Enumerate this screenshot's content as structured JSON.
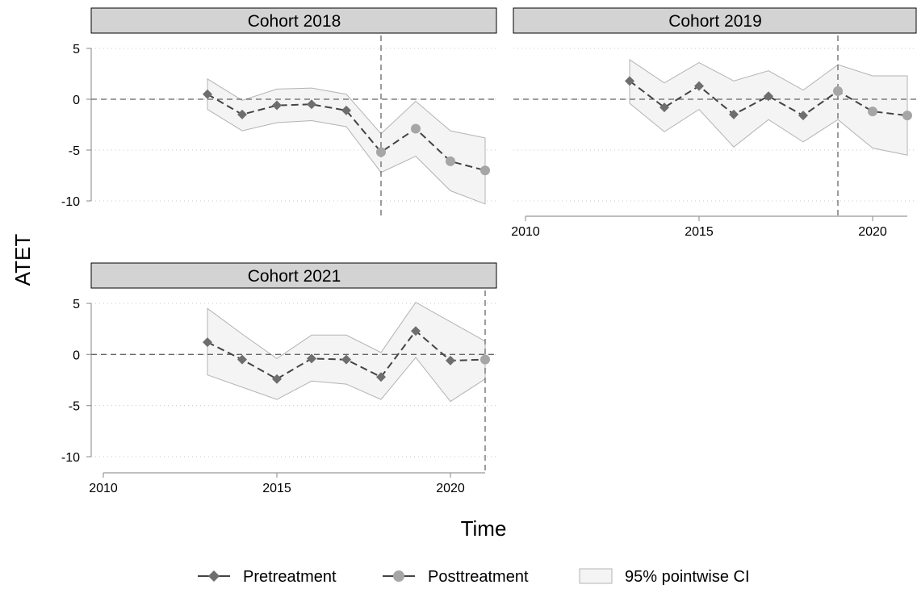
{
  "chart_data": [
    {
      "type": "line",
      "title": "Cohort 2018",
      "treatment_year": 2018,
      "x_ticks": [
        2010,
        2015,
        2020
      ],
      "y_ticks": [
        5,
        0,
        -5,
        -10
      ],
      "xlim": [
        2010,
        2021
      ],
      "ylim": [
        -10,
        5
      ],
      "series": [
        {
          "name": "Pretreatment",
          "x": [
            2013,
            2014,
            2015,
            2016,
            2017
          ],
          "y": [
            0.5,
            -1.5,
            -0.6,
            -0.5,
            -1.1
          ]
        },
        {
          "name": "Posttreatment",
          "x": [
            2018,
            2019,
            2020,
            2021
          ],
          "y": [
            -5.2,
            -2.9,
            -6.1,
            -7.0
          ]
        }
      ],
      "ci": {
        "x": [
          2013,
          2014,
          2015,
          2016,
          2017,
          2018,
          2019,
          2020,
          2021
        ],
        "lower": [
          -1.0,
          -3.1,
          -2.3,
          -2.1,
          -2.7,
          -7.2,
          -5.6,
          -9.0,
          -10.3
        ],
        "upper": [
          2.0,
          -0.1,
          1.0,
          1.1,
          0.5,
          -3.4,
          -0.2,
          -3.1,
          -3.8
        ]
      }
    },
    {
      "type": "line",
      "title": "Cohort 2019",
      "treatment_year": 2019,
      "x_ticks": [
        2010,
        2015,
        2020
      ],
      "y_ticks": [
        5,
        0,
        -5,
        -10
      ],
      "xlim": [
        2010,
        2021
      ],
      "ylim": [
        -10,
        5
      ],
      "series": [
        {
          "name": "Pretreatment",
          "x": [
            2013,
            2014,
            2015,
            2016,
            2017,
            2018
          ],
          "y": [
            1.8,
            -0.8,
            1.3,
            -1.5,
            0.3,
            -1.6
          ]
        },
        {
          "name": "Posttreatment",
          "x": [
            2019,
            2020,
            2021
          ],
          "y": [
            0.8,
            -1.2,
            -1.6
          ]
        }
      ],
      "ci": {
        "x": [
          2013,
          2014,
          2015,
          2016,
          2017,
          2018,
          2019,
          2020,
          2021
        ],
        "lower": [
          -0.4,
          -3.2,
          -1.0,
          -4.7,
          -2.0,
          -4.2,
          -2.0,
          -4.8,
          -5.5
        ],
        "upper": [
          3.9,
          1.6,
          3.6,
          1.8,
          2.8,
          0.9,
          3.4,
          2.3,
          2.3
        ]
      }
    },
    {
      "type": "line",
      "title": "Cohort 2021",
      "treatment_year": 2021,
      "x_ticks": [
        2010,
        2015,
        2020
      ],
      "y_ticks": [
        5,
        0,
        -5,
        -10
      ],
      "xlim": [
        2010,
        2021
      ],
      "ylim": [
        -10,
        5
      ],
      "series": [
        {
          "name": "Pretreatment",
          "x": [
            2013,
            2014,
            2015,
            2016,
            2017,
            2018,
            2019,
            2020
          ],
          "y": [
            1.2,
            -0.5,
            -2.4,
            -0.4,
            -0.5,
            -2.2,
            2.3,
            -0.6
          ]
        },
        {
          "name": "Posttreatment",
          "x": [
            2021
          ],
          "y": [
            -0.5
          ]
        }
      ],
      "ci": {
        "x": [
          2013,
          2014,
          2015,
          2016,
          2017,
          2018,
          2019,
          2020,
          2021
        ],
        "lower": [
          -2.0,
          -3.2,
          -4.4,
          -2.6,
          -2.9,
          -4.4,
          -0.3,
          -4.6,
          -2.4
        ],
        "upper": [
          4.5,
          2.0,
          -0.4,
          1.9,
          1.9,
          0.2,
          5.1,
          3.2,
          1.3
        ]
      }
    }
  ],
  "y_axis_label": "ATET",
  "x_axis_label": "Time",
  "legend": {
    "position": "bottom",
    "items": [
      {
        "label": "Pretreatment",
        "marker": "diamond",
        "color": "#6e6e6e"
      },
      {
        "label": "Posttreatment",
        "marker": "circle",
        "color": "#a6a6a6"
      },
      {
        "label": "95% pointwise CI",
        "marker": "box",
        "color": "#f4f4f4"
      }
    ]
  },
  "colors": {
    "pre_marker": "#6e6e6e",
    "post_marker": "#a6a6a6",
    "line": "#444444",
    "ci_fill": "#f4f4f4",
    "ci_edge": "#b3b3b3",
    "strip_fill": "#d3d3d3",
    "reference": "#666666"
  }
}
